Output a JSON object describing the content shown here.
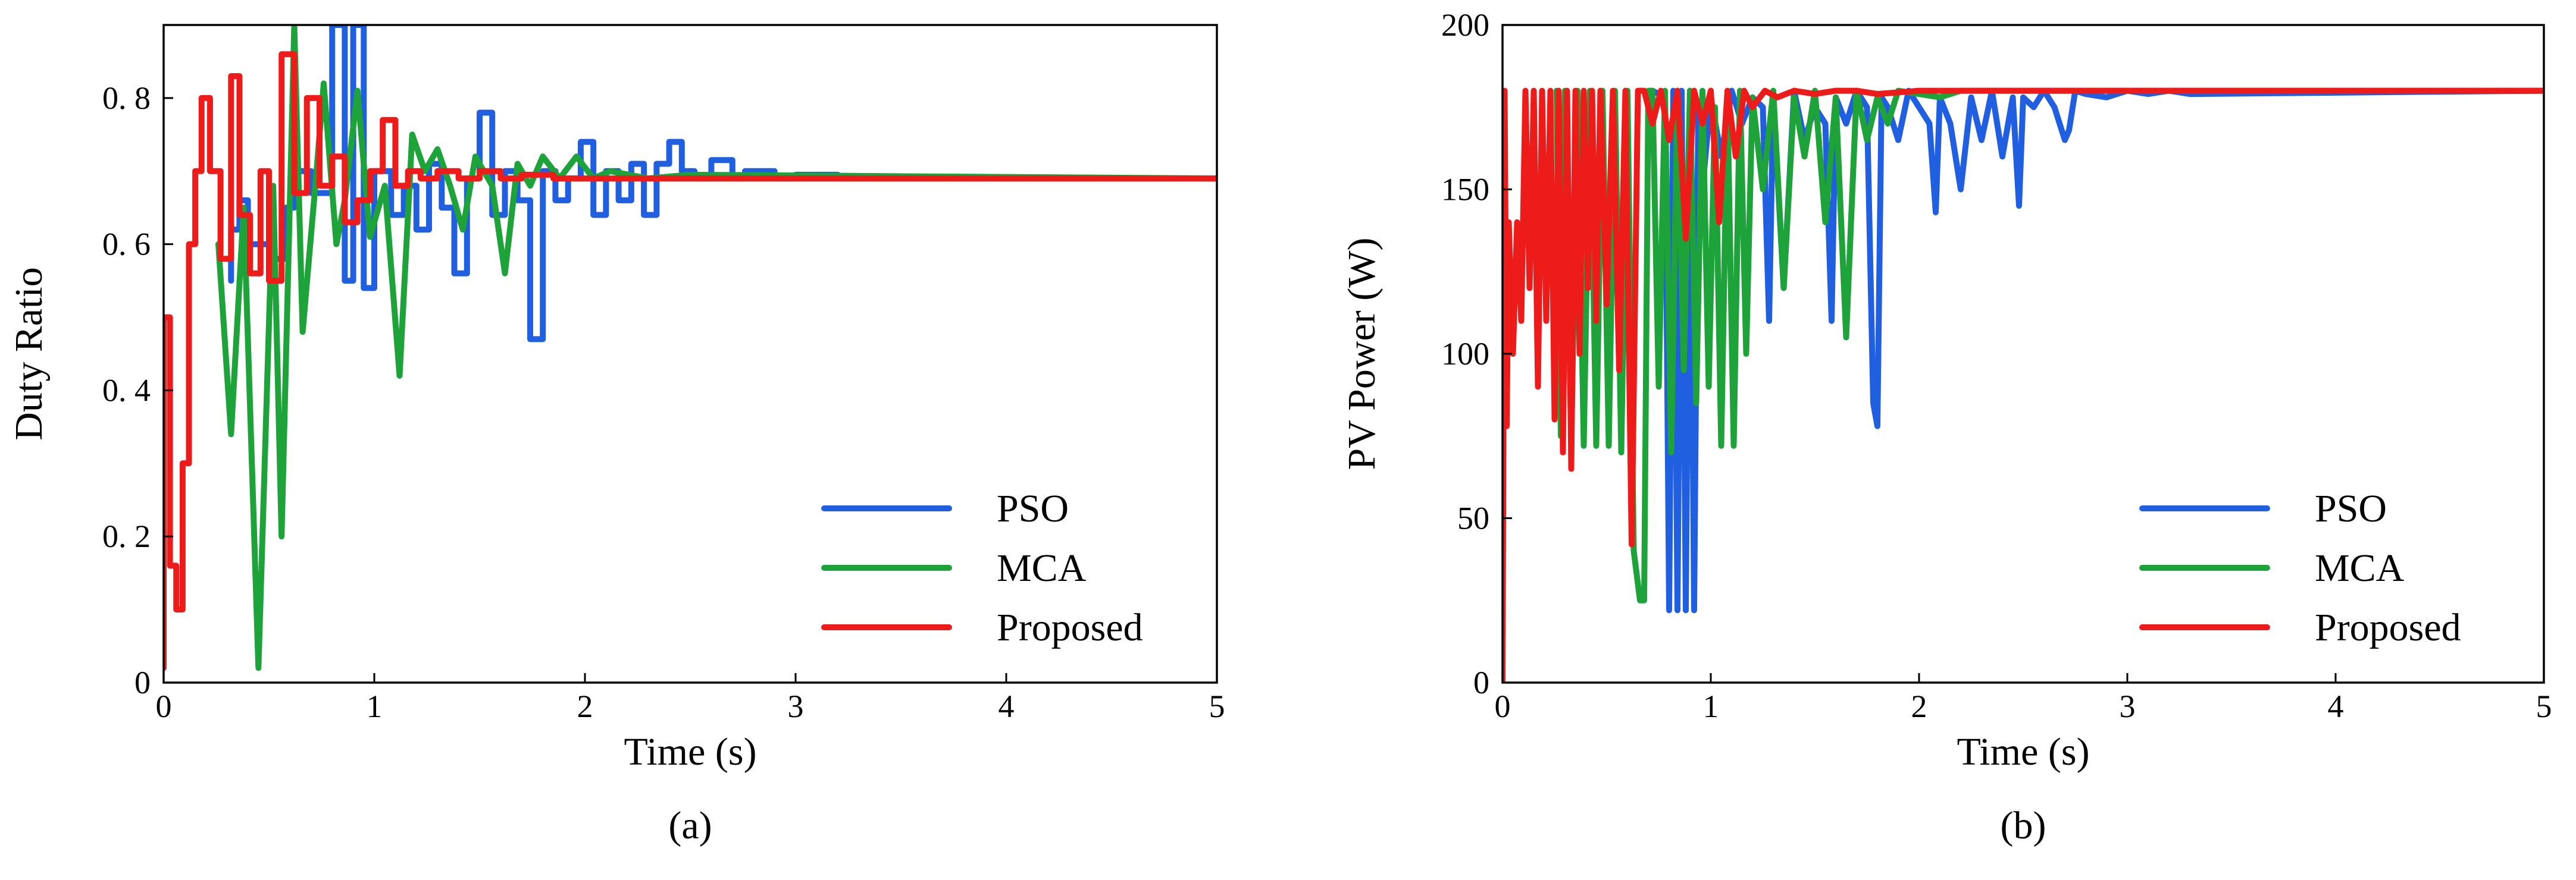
{
  "chart_data": [
    {
      "type": "line",
      "caption": "(a)",
      "xlabel": "Time (s)",
      "ylabel": "Duty Ratio",
      "xlim": [
        0,
        5
      ],
      "ylim": [
        0,
        0.9
      ],
      "xticks": [
        0,
        1,
        2,
        3,
        4,
        5
      ],
      "xtick_labels": [
        "0",
        "1",
        "2",
        "3",
        "4",
        "5"
      ],
      "yticks": [
        0,
        0.2,
        0.4,
        0.6,
        0.8
      ],
      "ytick_labels": [
        "0",
        "0. 2",
        "0. 4",
        "0. 6",
        "0. 8"
      ],
      "legend_position": "bottom-right",
      "series": [
        {
          "name": "PSO",
          "color": "#1f5fe0",
          "x": [
            0.32,
            0.32,
            0.36,
            0.36,
            0.4,
            0.4,
            0.52,
            0.52,
            0.58,
            0.58,
            0.62,
            0.62,
            0.7,
            0.7,
            0.8,
            0.8,
            0.86,
            0.86,
            0.9,
            0.9,
            0.95,
            0.95,
            1.0,
            1.0,
            1.08,
            1.08,
            1.14,
            1.14,
            1.2,
            1.2,
            1.26,
            1.26,
            1.32,
            1.32,
            1.38,
            1.38,
            1.44,
            1.44,
            1.5,
            1.5,
            1.56,
            1.56,
            1.62,
            1.62,
            1.68,
            1.68,
            1.74,
            1.74,
            1.8,
            1.8,
            1.86,
            1.86,
            1.92,
            1.92,
            1.98,
            1.98,
            2.04,
            2.04,
            2.1,
            2.1,
            2.16,
            2.16,
            2.22,
            2.22,
            2.28,
            2.28,
            2.34,
            2.34,
            2.4,
            2.4,
            2.46,
            2.46,
            2.52,
            2.52,
            2.6,
            2.6,
            2.7,
            2.7,
            2.76,
            2.76,
            2.9,
            2.9,
            3.0,
            3.0,
            3.2,
            3.2,
            3.4,
            5.0
          ],
          "y": [
            0.55,
            0.62,
            0.62,
            0.66,
            0.66,
            0.6,
            0.6,
            0.58,
            0.58,
            0.65,
            0.65,
            0.7,
            0.7,
            0.67,
            0.67,
            0.9,
            0.9,
            0.55,
            0.55,
            0.9,
            0.9,
            0.54,
            0.54,
            0.7,
            0.7,
            0.64,
            0.64,
            0.68,
            0.68,
            0.62,
            0.62,
            0.71,
            0.71,
            0.65,
            0.65,
            0.56,
            0.56,
            0.69,
            0.69,
            0.78,
            0.78,
            0.64,
            0.64,
            0.7,
            0.7,
            0.66,
            0.66,
            0.47,
            0.47,
            0.7,
            0.7,
            0.66,
            0.66,
            0.69,
            0.69,
            0.74,
            0.74,
            0.64,
            0.64,
            0.7,
            0.7,
            0.66,
            0.66,
            0.71,
            0.71,
            0.64,
            0.64,
            0.71,
            0.71,
            0.74,
            0.74,
            0.7,
            0.7,
            0.69,
            0.69,
            0.715,
            0.715,
            0.69,
            0.69,
            0.7,
            0.7,
            0.69,
            0.69,
            0.695,
            0.695,
            0.69,
            0.69,
            0.69
          ]
        },
        {
          "name": "MCA",
          "color": "#1ea33a",
          "x": [
            0.26,
            0.26,
            0.32,
            0.32,
            0.38,
            0.38,
            0.45,
            0.45,
            0.52,
            0.52,
            0.56,
            0.56,
            0.62,
            0.62,
            0.66,
            0.66,
            0.72,
            0.72,
            0.76,
            0.76,
            0.82,
            0.82,
            0.86,
            0.86,
            0.92,
            0.92,
            0.98,
            0.98,
            1.05,
            1.05,
            1.12,
            1.12,
            1.18,
            1.18,
            1.24,
            1.24,
            1.3,
            1.3,
            1.36,
            1.36,
            1.42,
            1.42,
            1.48,
            1.48,
            1.56,
            1.56,
            1.62,
            1.62,
            1.68,
            1.68,
            1.74,
            1.74,
            1.8,
            1.8,
            1.88,
            1.88,
            1.96,
            1.96,
            2.04,
            2.04,
            2.12,
            2.12,
            2.3,
            2.3,
            2.5,
            2.5,
            5.0
          ],
          "y": [
            0.6,
            0.6,
            0.34,
            0.34,
            0.65,
            0.65,
            0.02,
            0.02,
            0.68,
            0.68,
            0.2,
            0.2,
            0.9,
            0.9,
            0.48,
            0.48,
            0.68,
            0.68,
            0.82,
            0.82,
            0.6,
            0.6,
            0.66,
            0.66,
            0.81,
            0.81,
            0.61,
            0.61,
            0.68,
            0.68,
            0.42,
            0.42,
            0.75,
            0.75,
            0.7,
            0.7,
            0.73,
            0.73,
            0.68,
            0.68,
            0.62,
            0.62,
            0.72,
            0.72,
            0.68,
            0.68,
            0.56,
            0.56,
            0.71,
            0.71,
            0.68,
            0.68,
            0.72,
            0.72,
            0.69,
            0.69,
            0.72,
            0.72,
            0.69,
            0.69,
            0.7,
            0.7,
            0.69,
            0.69,
            0.695,
            0.695,
            0.69
          ]
        },
        {
          "name": "Proposed",
          "color": "#ee1b1b",
          "x": [
            0.0,
            0.0,
            0.03,
            0.03,
            0.06,
            0.06,
            0.09,
            0.09,
            0.12,
            0.12,
            0.15,
            0.15,
            0.18,
            0.18,
            0.22,
            0.22,
            0.27,
            0.27,
            0.32,
            0.32,
            0.36,
            0.36,
            0.41,
            0.41,
            0.46,
            0.46,
            0.5,
            0.5,
            0.56,
            0.56,
            0.62,
            0.62,
            0.68,
            0.68,
            0.74,
            0.74,
            0.8,
            0.8,
            0.86,
            0.86,
            0.92,
            0.92,
            0.98,
            0.98,
            1.04,
            1.04,
            1.1,
            1.1,
            1.16,
            1.16,
            1.22,
            1.22,
            1.3,
            1.3,
            1.4,
            1.4,
            1.5,
            1.5,
            1.6,
            1.6,
            1.7,
            1.7,
            1.85,
            1.85,
            2.0,
            2.0,
            5.0
          ],
          "y": [
            0.02,
            0.5,
            0.5,
            0.16,
            0.16,
            0.1,
            0.1,
            0.3,
            0.3,
            0.6,
            0.6,
            0.7,
            0.7,
            0.8,
            0.8,
            0.7,
            0.7,
            0.58,
            0.58,
            0.83,
            0.83,
            0.64,
            0.64,
            0.56,
            0.56,
            0.7,
            0.7,
            0.55,
            0.55,
            0.86,
            0.86,
            0.67,
            0.67,
            0.8,
            0.8,
            0.68,
            0.68,
            0.72,
            0.72,
            0.63,
            0.63,
            0.66,
            0.66,
            0.7,
            0.7,
            0.77,
            0.77,
            0.68,
            0.68,
            0.7,
            0.7,
            0.69,
            0.69,
            0.7,
            0.7,
            0.69,
            0.69,
            0.7,
            0.7,
            0.69,
            0.69,
            0.695,
            0.695,
            0.69,
            0.69,
            0.69,
            0.69
          ]
        }
      ]
    },
    {
      "type": "line",
      "caption": "(b)",
      "xlabel": "Time (s)",
      "ylabel": "PV Power (W)",
      "xlim": [
        0,
        5
      ],
      "ylim": [
        0,
        200
      ],
      "xticks": [
        0,
        1,
        2,
        3,
        4,
        5
      ],
      "xtick_labels": [
        "0",
        "1",
        "2",
        "3",
        "4",
        "5"
      ],
      "yticks": [
        0,
        50,
        100,
        150,
        200
      ],
      "ytick_labels": [
        "0",
        "50",
        "100",
        "150",
        "200"
      ],
      "legend_position": "bottom-right",
      "series": [
        {
          "name": "PSO",
          "color": "#1f5fe0",
          "x": [
            0.72,
            0.78,
            0.8,
            0.82,
            0.84,
            0.86,
            0.88,
            0.9,
            0.92,
            0.94,
            0.96,
            1.0,
            1.05,
            1.1,
            1.15,
            1.2,
            1.25,
            1.28,
            1.3,
            1.35,
            1.4,
            1.45,
            1.5,
            1.55,
            1.58,
            1.6,
            1.65,
            1.7,
            1.75,
            1.78,
            1.8,
            1.82,
            1.85,
            1.9,
            1.95,
            2.0,
            2.05,
            2.08,
            2.1,
            2.15,
            2.2,
            2.25,
            2.3,
            2.35,
            2.4,
            2.45,
            2.48,
            2.5,
            2.55,
            2.6,
            2.65,
            2.7,
            2.72,
            2.75,
            2.8,
            2.9,
            3.0,
            3.1,
            3.2,
            3.3,
            5.0
          ],
          "y": [
            180,
            178,
            22,
            180,
            22,
            180,
            22,
            180,
            22,
            175,
            150,
            178,
            160,
            180,
            170,
            178,
            175,
            110,
            178,
            120,
            180,
            165,
            175,
            170,
            110,
            178,
            170,
            180,
            175,
            85,
            78,
            178,
            175,
            165,
            180,
            175,
            170,
            143,
            178,
            170,
            150,
            178,
            165,
            180,
            160,
            178,
            145,
            178,
            175,
            180,
            175,
            165,
            168,
            180,
            179,
            178,
            180,
            179,
            180,
            179,
            180
          ]
        },
        {
          "name": "MCA",
          "color": "#1ea33a",
          "x": [
            0.26,
            0.28,
            0.3,
            0.33,
            0.36,
            0.39,
            0.42,
            0.45,
            0.48,
            0.51,
            0.54,
            0.57,
            0.6,
            0.63,
            0.66,
            0.68,
            0.7,
            0.72,
            0.75,
            0.78,
            0.81,
            0.84,
            0.87,
            0.9,
            0.93,
            0.96,
            0.99,
            1.02,
            1.05,
            1.08,
            1.11,
            1.14,
            1.17,
            1.2,
            1.25,
            1.3,
            1.35,
            1.4,
            1.45,
            1.5,
            1.55,
            1.6,
            1.65,
            1.7,
            1.75,
            1.8,
            1.85,
            1.9,
            2.0,
            2.1,
            2.2,
            5.0
          ],
          "y": [
            180,
            75,
            180,
            72,
            180,
            72,
            180,
            72,
            180,
            72,
            180,
            70,
            180,
            40,
            25,
            25,
            180,
            180,
            90,
            180,
            70,
            180,
            95,
            180,
            85,
            180,
            90,
            175,
            72,
            178,
            72,
            180,
            100,
            178,
            150,
            180,
            120,
            178,
            160,
            180,
            140,
            178,
            105,
            180,
            165,
            178,
            170,
            180,
            179,
            178,
            180,
            180
          ]
        },
        {
          "name": "Proposed",
          "color": "#ee1b1b",
          "x": [
            0.0,
            0.01,
            0.02,
            0.03,
            0.05,
            0.07,
            0.09,
            0.11,
            0.13,
            0.15,
            0.17,
            0.19,
            0.21,
            0.23,
            0.25,
            0.27,
            0.29,
            0.31,
            0.33,
            0.35,
            0.37,
            0.39,
            0.41,
            0.43,
            0.45,
            0.47,
            0.5,
            0.53,
            0.56,
            0.59,
            0.62,
            0.65,
            0.68,
            0.72,
            0.76,
            0.8,
            0.84,
            0.88,
            0.92,
            0.96,
            1.0,
            1.04,
            1.08,
            1.12,
            1.16,
            1.2,
            1.26,
            1.32,
            1.4,
            1.5,
            1.6,
            1.7,
            1.8,
            2.0,
            2.5,
            5.0
          ],
          "y": [
            0,
            180,
            78,
            140,
            100,
            140,
            110,
            180,
            120,
            180,
            90,
            180,
            110,
            180,
            80,
            180,
            70,
            180,
            65,
            180,
            100,
            180,
            120,
            180,
            110,
            180,
            115,
            180,
            95,
            180,
            42,
            180,
            180,
            170,
            180,
            165,
            180,
            135,
            180,
            170,
            180,
            140,
            180,
            160,
            180,
            175,
            180,
            178,
            180,
            179,
            180,
            180,
            179,
            180,
            180,
            180
          ]
        }
      ]
    }
  ]
}
